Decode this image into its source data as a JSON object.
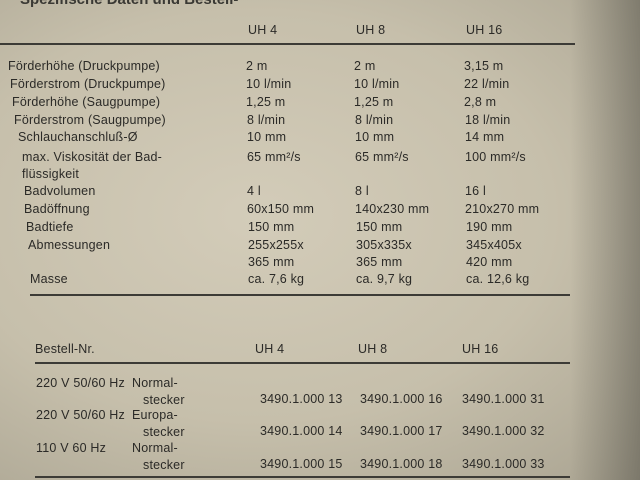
{
  "header": {
    "title": "Spezifische Daten und Bestell-"
  },
  "specs": {
    "columns": [
      "UH 4",
      "UH 8",
      "UH 16"
    ],
    "rows": [
      {
        "label": [
          "Förderhöhe (Druckpumpe)"
        ],
        "values": [
          [
            "2 m"
          ],
          [
            "2 m"
          ],
          [
            "3,15 m"
          ]
        ]
      },
      {
        "label": [
          "Förderstrom (Druckpumpe)"
        ],
        "values": [
          [
            "10 l/min"
          ],
          [
            "10 l/min"
          ],
          [
            "22 l/min"
          ]
        ]
      },
      {
        "label": [
          "Förderhöhe (Saugpumpe)"
        ],
        "values": [
          [
            "1,25 m"
          ],
          [
            "1,25 m"
          ],
          [
            "2,8 m"
          ]
        ]
      },
      {
        "label": [
          "Förderstrom (Saugpumpe)"
        ],
        "values": [
          [
            "8 l/min"
          ],
          [
            "8 l/min"
          ],
          [
            "18 l/min"
          ]
        ]
      },
      {
        "label": [
          "Schlauchanschluß-Ø"
        ],
        "values": [
          [
            "10 mm"
          ],
          [
            "10 mm"
          ],
          [
            "14 mm"
          ]
        ]
      },
      {
        "label": [
          "max. Viskosität der Bad-",
          "flüssigkeit"
        ],
        "values": [
          [
            "65 mm²/s"
          ],
          [
            "65 mm²/s"
          ],
          [
            "100 mm²/s"
          ]
        ]
      },
      {
        "label": [
          "Badvolumen"
        ],
        "values": [
          [
            "4 l"
          ],
          [
            "8 l"
          ],
          [
            "16 l"
          ]
        ]
      },
      {
        "label": [
          "Badöffnung"
        ],
        "values": [
          [
            "60x150 mm"
          ],
          [
            "140x230 mm"
          ],
          [
            "210x270 mm"
          ]
        ]
      },
      {
        "label": [
          "Badtiefe"
        ],
        "values": [
          [
            "150 mm"
          ],
          [
            "150 mm"
          ],
          [
            "190 mm"
          ]
        ]
      },
      {
        "label": [
          "Abmessungen"
        ],
        "values": [
          [
            "255x255x",
            "365 mm"
          ],
          [
            "305x335x",
            "365 mm"
          ],
          [
            "345x405x",
            "420 mm"
          ]
        ]
      },
      {
        "label": [
          "Masse"
        ],
        "values": [
          [
            "ca. 7,6 kg"
          ],
          [
            "ca. 9,7 kg"
          ],
          [
            "ca. 12,6 kg"
          ]
        ]
      }
    ]
  },
  "orders": {
    "header": "Bestell-Nr.",
    "columns": [
      "UH 4",
      "UH 8",
      "UH 16"
    ],
    "rows": [
      {
        "voltage": "220 V 50/60 Hz",
        "plug": [
          "Normal-",
          "stecker"
        ],
        "numbers": [
          "3490.1.000 13",
          "3490.1.000 16",
          "3490.1.000 31"
        ]
      },
      {
        "voltage": "220 V 50/60 Hz",
        "plug": [
          "Europa-",
          "stecker"
        ],
        "numbers": [
          "3490.1.000 14",
          "3490.1.000 17",
          "3490.1.000 32"
        ]
      },
      {
        "voltage": "110 V 60 Hz",
        "plug": [
          "Normal-",
          "stecker"
        ],
        "numbers": [
          "3490.1.000 15",
          "3490.1.000 18",
          "3490.1.000 33"
        ]
      }
    ]
  }
}
